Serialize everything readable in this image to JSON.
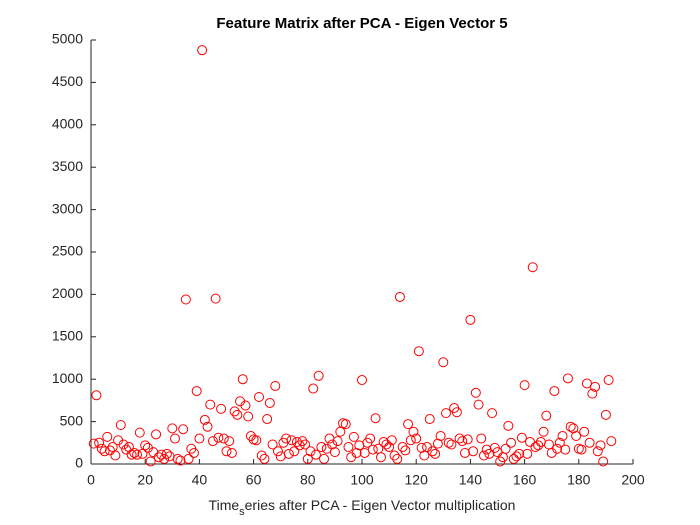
{
  "chart_data": {
    "type": "scatter",
    "title": "Feature Matrix after PCA - Eigen Vector 5",
    "xlabel": [
      "Time",
      "s",
      "eries after PCA - Eigen Vector multiplication"
    ],
    "color": "#ff0000",
    "xlim": [
      0,
      200
    ],
    "xticks": [
      0,
      20,
      40,
      60,
      80,
      100,
      120,
      140,
      160,
      180,
      200
    ],
    "ylim": [
      0,
      5000
    ],
    "yticks": [
      0,
      500,
      1000,
      1500,
      2000,
      2500,
      3000,
      3500,
      4000,
      4500,
      5000
    ],
    "x": [
      1,
      2,
      3,
      4,
      5,
      6,
      7,
      8,
      9,
      10,
      11,
      12,
      13,
      14,
      15,
      16,
      17,
      18,
      19,
      20,
      21,
      22,
      23,
      24,
      25,
      26,
      27,
      28,
      29,
      30,
      31,
      32,
      33,
      34,
      35,
      36,
      37,
      38,
      39,
      40,
      41,
      42,
      43,
      44,
      45,
      46,
      47,
      48,
      49,
      50,
      51,
      52,
      53,
      54,
      55,
      56,
      57,
      58,
      59,
      60,
      61,
      62,
      63,
      64,
      65,
      66,
      67,
      68,
      69,
      70,
      71,
      72,
      73,
      74,
      75,
      76,
      77,
      78,
      79,
      80,
      81,
      82,
      83,
      84,
      85,
      86,
      87,
      88,
      89,
      90,
      91,
      92,
      93,
      94,
      95,
      96,
      97,
      98,
      99,
      100,
      101,
      102,
      103,
      104,
      105,
      106,
      107,
      108,
      109,
      110,
      111,
      112,
      113,
      114,
      115,
      116,
      117,
      118,
      119,
      120,
      121,
      122,
      123,
      124,
      125,
      126,
      127,
      128,
      129,
      130,
      131,
      132,
      133,
      134,
      135,
      136,
      137,
      138,
      139,
      140,
      141,
      142,
      143,
      144,
      145,
      146,
      147,
      148,
      149,
      150,
      151,
      152,
      153,
      154,
      155,
      156,
      157,
      158,
      159,
      160,
      161,
      162,
      163,
      164,
      165,
      166,
      167,
      168,
      169,
      170,
      171,
      172,
      173,
      174,
      175,
      176,
      177,
      178,
      179,
      180,
      181,
      182,
      183,
      184,
      185,
      186,
      187,
      188,
      189,
      190,
      191,
      192
    ],
    "values": [
      240,
      810,
      250,
      180,
      150,
      320,
      160,
      200,
      100,
      280,
      460,
      230,
      170,
      200,
      110,
      130,
      110,
      370,
      120,
      220,
      190,
      30,
      140,
      350,
      80,
      110,
      60,
      120,
      90,
      420,
      300,
      60,
      40,
      410,
      1940,
      60,
      180,
      130,
      860,
      300,
      4880,
      520,
      440,
      700,
      270,
      1950,
      310,
      650,
      300,
      150,
      270,
      130,
      620,
      580,
      740,
      1000,
      690,
      560,
      330,
      290,
      280,
      790,
      100,
      60,
      530,
      720,
      230,
      920,
      150,
      90,
      250,
      300,
      120,
      280,
      150,
      260,
      220,
      270,
      230,
      60,
      150,
      890,
      110,
      1040,
      200,
      60,
      180,
      300,
      230,
      140,
      270,
      380,
      480,
      470,
      200,
      80,
      320,
      130,
      220,
      990,
      130,
      250,
      300,
      170,
      540,
      180,
      80,
      260,
      230,
      200,
      280,
      100,
      60,
      1970,
      200,
      160,
      470,
      280,
      380,
      300,
      1330,
      190,
      100,
      200,
      530,
      150,
      120,
      240,
      330,
      1200,
      600,
      250,
      230,
      660,
      610,
      300,
      270,
      130,
      290,
      1700,
      150,
      840,
      700,
      300,
      100,
      170,
      120,
      600,
      190,
      140,
      30,
      80,
      180,
      450,
      250,
      60,
      90,
      120,
      310,
      930,
      120,
      260,
      2320,
      200,
      220,
      260,
      380,
      570,
      230,
      130,
      860,
      180,
      250,
      330,
      170,
      1010,
      440,
      420,
      330,
      180,
      170,
      380,
      950,
      250,
      830,
      910,
      150,
      220,
      30,
      580,
      990,
      270
    ]
  }
}
